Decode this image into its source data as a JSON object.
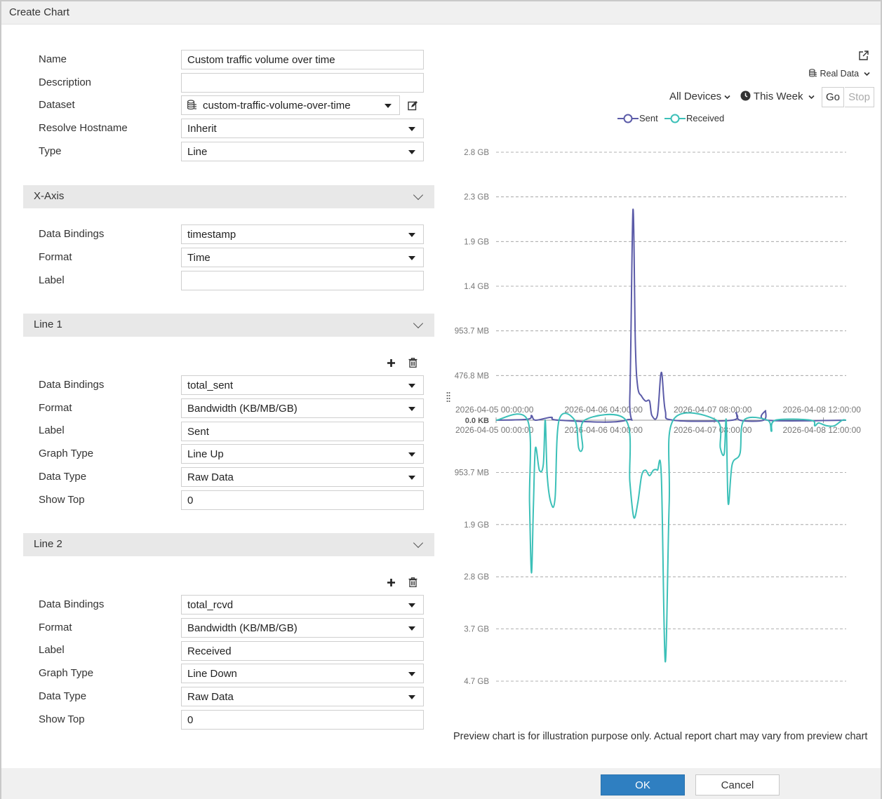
{
  "dialog": {
    "title": "Create Chart"
  },
  "form": {
    "name_label": "Name",
    "name_value": "Custom traffic volume over time",
    "description_label": "Description",
    "description_value": "",
    "dataset_label": "Dataset",
    "dataset_value": "custom-traffic-volume-over-time",
    "resolve_label": "Resolve Hostname",
    "resolve_value": "Inherit",
    "type_label": "Type",
    "type_value": "Line"
  },
  "xaxis": {
    "title": "X-Axis",
    "bindings_label": "Data Bindings",
    "bindings_value": "timestamp",
    "format_label": "Format",
    "format_value": "Time",
    "label_label": "Label",
    "label_value": ""
  },
  "line1": {
    "title": "Line 1",
    "bindings_label": "Data Bindings",
    "bindings_value": "total_sent",
    "format_label": "Format",
    "format_value": "Bandwidth (KB/MB/GB)",
    "label_label": "Label",
    "label_value": "Sent",
    "graph_label": "Graph Type",
    "graph_value": "Line Up",
    "datatype_label": "Data Type",
    "datatype_value": "Raw Data",
    "showtop_label": "Show Top",
    "showtop_value": "0"
  },
  "line2": {
    "title": "Line 2",
    "bindings_label": "Data Bindings",
    "bindings_value": "total_rcvd",
    "format_label": "Format",
    "format_value": "Bandwidth (KB/MB/GB)",
    "label_label": "Label",
    "label_value": "Received",
    "graph_label": "Graph Type",
    "graph_value": "Line Down",
    "datatype_label": "Data Type",
    "datatype_value": "Raw Data",
    "showtop_label": "Show Top",
    "showtop_value": "0"
  },
  "toolbar": {
    "real_data": "Real Data",
    "devices": "All Devices",
    "period": "This Week",
    "go": "Go",
    "stop": "Stop"
  },
  "colors": {
    "sent": "#5b5ba8",
    "received": "#3cc0b8",
    "primary": "#2f7fc1"
  },
  "chart_data": {
    "type": "line",
    "title": "",
    "legend": [
      "Sent",
      "Received"
    ],
    "legend_position": "top",
    "grid": true,
    "x_ticks": [
      "2026-04-05 00:00:00",
      "2026-04-06 04:00:00",
      "2026-04-07 08:00:00",
      "2026-04-08 12:00:00"
    ],
    "y_ticks_up": [
      "2.8 GB",
      "2.3 GB",
      "1.9 GB",
      "1.4 GB",
      "953.7 MB",
      "476.8 MB"
    ],
    "zero_label": "0.0 KB",
    "y_ticks_down": [
      "953.7 MB",
      "1.9 GB",
      "2.8 GB",
      "3.7 GB",
      "4.7 GB"
    ],
    "x_unit": "hours from 2026-04-05 00:00:00",
    "xlim": [
      0,
      89
    ],
    "ylim_up_gb": [
      0,
      2.8
    ],
    "ylim_down_gb": [
      0,
      4.7
    ],
    "series": [
      {
        "name": "Sent",
        "direction": "up",
        "points": [
          [
            0,
            0
          ],
          [
            8,
            0.01
          ],
          [
            9,
            0.05
          ],
          [
            10,
            0.0
          ],
          [
            14,
            0.03
          ],
          [
            16,
            0.0
          ],
          [
            33,
            0.0
          ],
          [
            34,
            0.25
          ],
          [
            34.8,
            2.2
          ],
          [
            35.4,
            0.8
          ],
          [
            36,
            0.35
          ],
          [
            37,
            0.25
          ],
          [
            38,
            0.2
          ],
          [
            39,
            0.2
          ],
          [
            39.6,
            0.05
          ],
          [
            41,
            0.05
          ],
          [
            42,
            0.5
          ],
          [
            43,
            0.1
          ],
          [
            45,
            0.0
          ],
          [
            60,
            0.0
          ],
          [
            61,
            0.08
          ],
          [
            62,
            0.0
          ],
          [
            68,
            0.0
          ],
          [
            68.5,
            0.1
          ],
          [
            69,
            0.0
          ],
          [
            89,
            0.0
          ]
        ]
      },
      {
        "name": "Received",
        "direction": "down",
        "points": [
          [
            0,
            0
          ],
          [
            8,
            0.0
          ],
          [
            8.5,
            1.5
          ],
          [
            9,
            2.75
          ],
          [
            9.5,
            1.5
          ],
          [
            10,
            0.5
          ],
          [
            11,
            0.9
          ],
          [
            12,
            0.8
          ],
          [
            12.5,
            0.0
          ],
          [
            13,
            1.0
          ],
          [
            14,
            1.5
          ],
          [
            15,
            1.4
          ],
          [
            16,
            0.0
          ],
          [
            20,
            0.0
          ],
          [
            21,
            0.5
          ],
          [
            22,
            0.5
          ],
          [
            22.5,
            0.0
          ],
          [
            33,
            0.0
          ],
          [
            34,
            1.1
          ],
          [
            35,
            1.75
          ],
          [
            36,
            1.5
          ],
          [
            37,
            1.0
          ],
          [
            38,
            0.9
          ],
          [
            39,
            1.0
          ],
          [
            40,
            0.9
          ],
          [
            41,
            0.9
          ],
          [
            42,
            1.0
          ],
          [
            43,
            4.35
          ],
          [
            44,
            1.5
          ],
          [
            45,
            0.0
          ],
          [
            56,
            0.0
          ],
          [
            57,
            0.5
          ],
          [
            58,
            0.6
          ],
          [
            58.5,
            0.0
          ],
          [
            59,
            1.5
          ],
          [
            60,
            0.8
          ],
          [
            62,
            0.6
          ],
          [
            63,
            0.0
          ],
          [
            69,
            0.0
          ],
          [
            70,
            0.2
          ],
          [
            71,
            0.0
          ],
          [
            80,
            0.0
          ],
          [
            81,
            0.1
          ],
          [
            82,
            0.05
          ],
          [
            84,
            0.1
          ],
          [
            86,
            0.1
          ],
          [
            88,
            0.0
          ],
          [
            89,
            0.0
          ]
        ]
      }
    ]
  },
  "footnote": "Preview chart is for illustration purpose only. Actual report chart may vary from preview chart",
  "footer": {
    "ok": "OK",
    "cancel": "Cancel"
  }
}
